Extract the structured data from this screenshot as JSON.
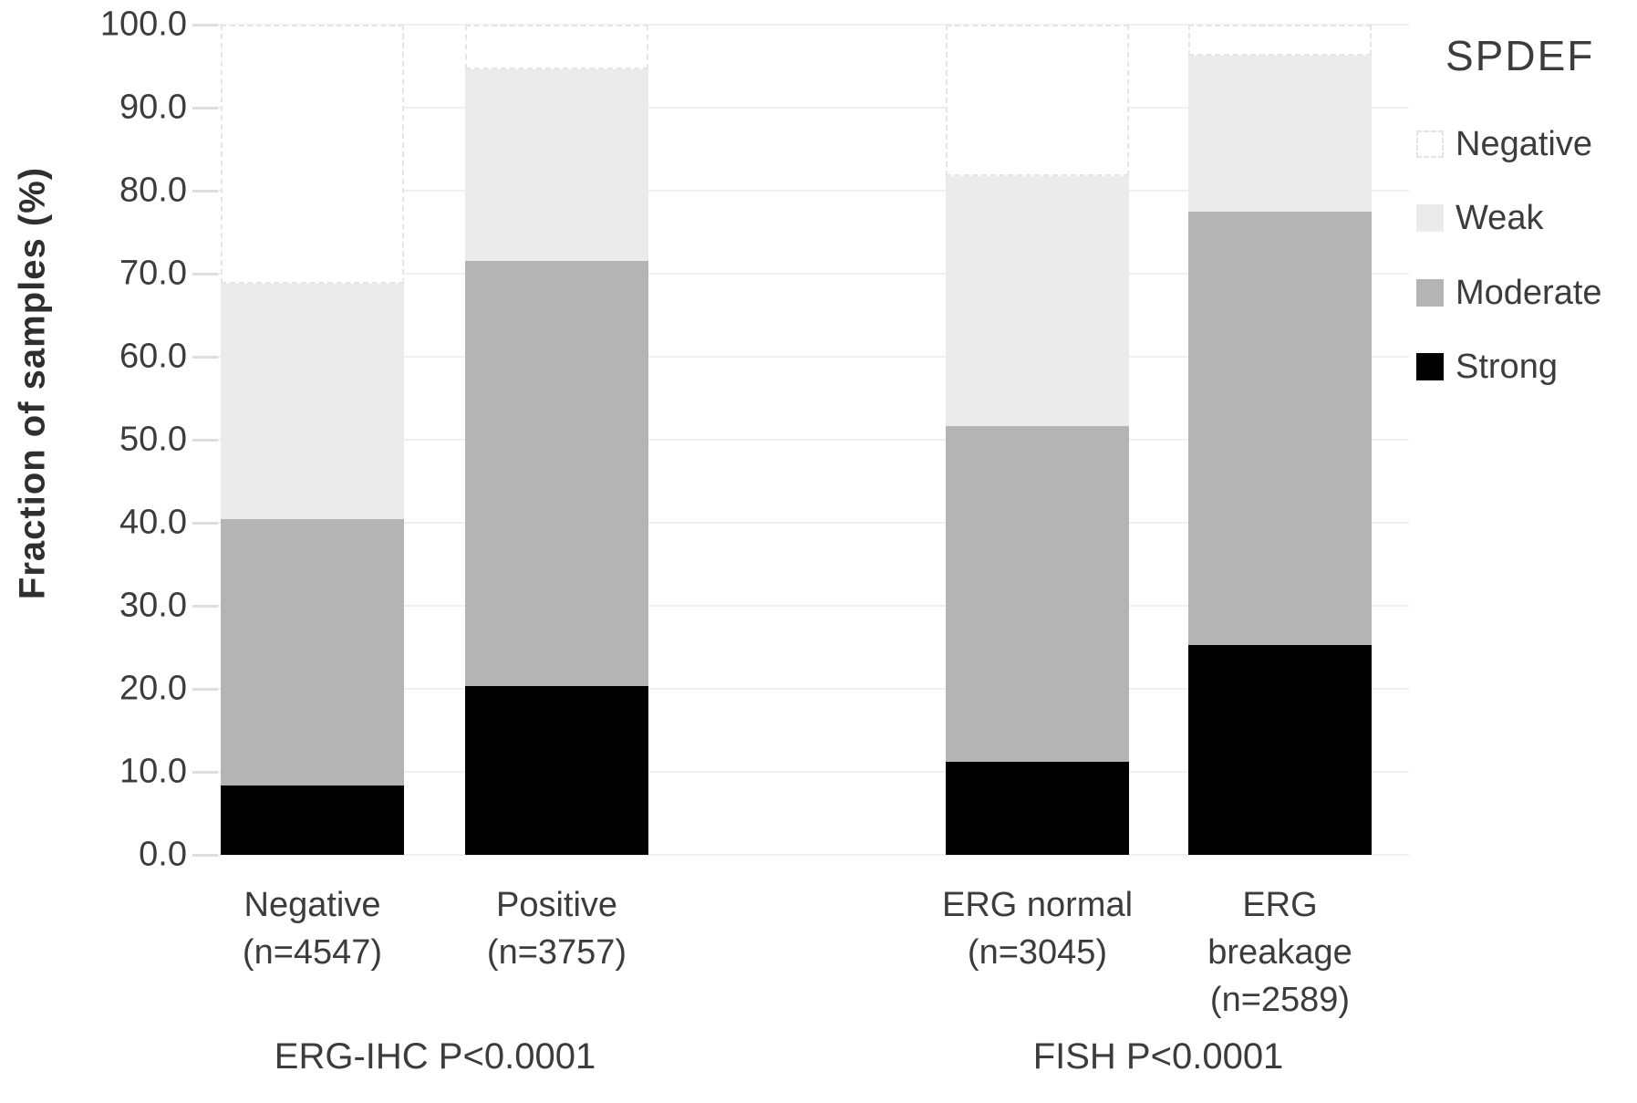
{
  "chart_data": {
    "type": "bar",
    "stacked": true,
    "orientation": "vertical",
    "ylabel": "Fraction of samples (%)",
    "ylim": [
      0,
      100
    ],
    "grid": "horizontal",
    "yticks": [
      {
        "value": 0,
        "label": "0.0"
      },
      {
        "value": 10,
        "label": "10.0"
      },
      {
        "value": 20,
        "label": "20.0"
      },
      {
        "value": 30,
        "label": "30.0"
      },
      {
        "value": 40,
        "label": "40.0"
      },
      {
        "value": 50,
        "label": "50.0"
      },
      {
        "value": 60,
        "label": "60.0"
      },
      {
        "value": 70,
        "label": "70.0"
      },
      {
        "value": 80,
        "label": "80.0"
      },
      {
        "value": 90,
        "label": "90.0"
      },
      {
        "value": 100,
        "label": "100.0"
      }
    ],
    "categories": [
      {
        "id": "erg-ihc-negative",
        "label_lines": [
          "Negative",
          "(n=4547)"
        ]
      },
      {
        "id": "erg-ihc-positive",
        "label_lines": [
          "Positive",
          "(n=3757)"
        ]
      },
      {
        "id": "fish-erg-normal",
        "label_lines": [
          "ERG normal",
          "(n=3045)"
        ]
      },
      {
        "id": "fish-erg-breakage",
        "label_lines": [
          "ERG",
          "breakage",
          "(n=2589)"
        ]
      }
    ],
    "series": [
      {
        "name": "Strong",
        "color": "#000000",
        "values": [
          8.4,
          20.3,
          11.2,
          25.3
        ]
      },
      {
        "name": "Moderate",
        "color": "#b4b4b4",
        "values": [
          32.0,
          51.2,
          40.4,
          52.2
        ]
      },
      {
        "name": "Weak",
        "color": "#ebebeb",
        "values": [
          28.4,
          23.1,
          30.2,
          18.8
        ]
      },
      {
        "name": "Negative",
        "color": "#ffffff",
        "values": [
          31.2,
          5.4,
          18.2,
          3.7
        ]
      }
    ],
    "legend": {
      "title": "SPDEF",
      "position": "right",
      "entries": [
        {
          "label": "Negative",
          "color": "#ffffff",
          "border": "dashed"
        },
        {
          "label": "Weak",
          "color": "#ebebeb",
          "border": "none"
        },
        {
          "label": "Moderate",
          "color": "#b4b4b4",
          "border": "none"
        },
        {
          "label": "Strong",
          "color": "#000000",
          "border": "none"
        }
      ]
    },
    "group_annotations": [
      {
        "label": "ERG-IHC P<0.0001",
        "categories": [
          "erg-ihc-negative",
          "erg-ihc-positive"
        ]
      },
      {
        "label": "FISH P<0.0001",
        "categories": [
          "fish-erg-normal",
          "fish-erg-breakage"
        ]
      }
    ],
    "colors": {
      "gridline": "#f0f0f0",
      "tick": "#dedede",
      "text": "#3c3c3c",
      "background": "#ffffff"
    }
  }
}
